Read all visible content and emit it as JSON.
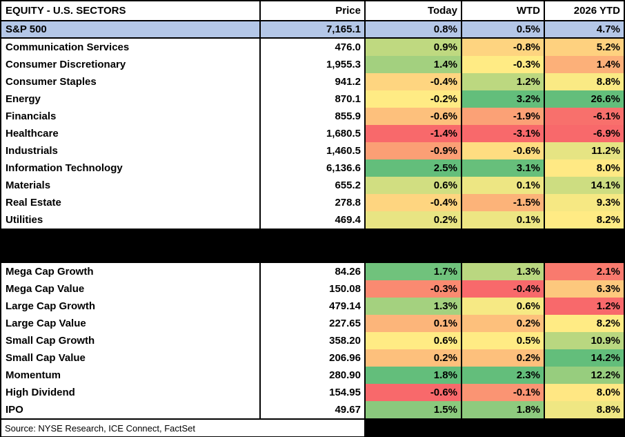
{
  "chart_data": {
    "type": "table",
    "title": "EQUITY - U.S. SECTORS",
    "columns": [
      "Price",
      "Today",
      "WTD",
      "2026 YTD"
    ],
    "index_row": {
      "label": "S&P 500",
      "price": "7,165.1",
      "today": 0.8,
      "wtd": 0.5,
      "ytd": 4.7
    },
    "sections": [
      {
        "id": "sectors",
        "rows": [
          {
            "label": "Communication Services",
            "price": "476.0",
            "today": 0.9,
            "wtd": -0.8,
            "ytd": 5.2
          },
          {
            "label": "Consumer Discretionary",
            "price": "1,955.3",
            "today": 1.4,
            "wtd": -0.3,
            "ytd": 1.4
          },
          {
            "label": "Consumer Staples",
            "price": "941.2",
            "today": -0.4,
            "wtd": 1.2,
            "ytd": 8.8
          },
          {
            "label": "Energy",
            "price": "870.1",
            "today": -0.2,
            "wtd": 3.2,
            "ytd": 26.6
          },
          {
            "label": "Financials",
            "price": "855.9",
            "today": -0.6,
            "wtd": -1.9,
            "ytd": -6.1
          },
          {
            "label": "Healthcare",
            "price": "1,680.5",
            "today": -1.4,
            "wtd": -3.1,
            "ytd": -6.9
          },
          {
            "label": "Industrials",
            "price": "1,460.5",
            "today": -0.9,
            "wtd": -0.6,
            "ytd": 11.2
          },
          {
            "label": "Information Technology",
            "price": "6,136.6",
            "today": 2.5,
            "wtd": 3.1,
            "ytd": 8.0
          },
          {
            "label": "Materials",
            "price": "655.2",
            "today": 0.6,
            "wtd": 0.1,
            "ytd": 14.1
          },
          {
            "label": "Real Estate",
            "price": "278.8",
            "today": -0.4,
            "wtd": -1.5,
            "ytd": 9.3
          },
          {
            "label": "Utilities",
            "price": "469.4",
            "today": 0.2,
            "wtd": 0.1,
            "ytd": 8.2
          }
        ]
      },
      {
        "id": "styles",
        "rows": [
          {
            "label": "Mega Cap Growth",
            "price": "84.26",
            "today": 1.7,
            "wtd": 1.3,
            "ytd": 2.1
          },
          {
            "label": "Mega Cap Value",
            "price": "150.08",
            "today": -0.3,
            "wtd": -0.4,
            "ytd": 6.3
          },
          {
            "label": "Large Cap Growth",
            "price": "479.14",
            "today": 1.3,
            "wtd": 0.6,
            "ytd": 1.2
          },
          {
            "label": "Large Cap Value",
            "price": "227.65",
            "today": 0.1,
            "wtd": 0.2,
            "ytd": 8.2
          },
          {
            "label": "Small Cap Growth",
            "price": "358.20",
            "today": 0.6,
            "wtd": 0.5,
            "ytd": 10.9
          },
          {
            "label": "Small Cap Value",
            "price": "206.96",
            "today": 0.2,
            "wtd": 0.2,
            "ytd": 14.2
          },
          {
            "label": "Momentum",
            "price": "280.90",
            "today": 1.8,
            "wtd": 2.3,
            "ytd": 12.2
          },
          {
            "label": "High Dividend",
            "price": "154.95",
            "today": -0.6,
            "wtd": -0.1,
            "ytd": 8.0
          },
          {
            "label": "IPO",
            "price": "49.67",
            "today": 1.5,
            "wtd": 1.8,
            "ytd": 8.8
          }
        ]
      }
    ],
    "color_scale": {
      "min_color": "#F8696B",
      "mid_color": "#FFEB84",
      "max_color": "#63BE7B",
      "midpoint": "50th percentile per column per section",
      "legend": "red = worst, yellow = median, green = best"
    },
    "value_format": "one decimal place with % sign"
  },
  "colors": {
    "index_row_bg": "#B4C7E7",
    "divider_bg": "#000000",
    "grid_border": "#000000",
    "cell_bg": "#FFFFFF"
  },
  "source": {
    "text": "Source: NYSE Research, ICE Connect, FactSet"
  }
}
